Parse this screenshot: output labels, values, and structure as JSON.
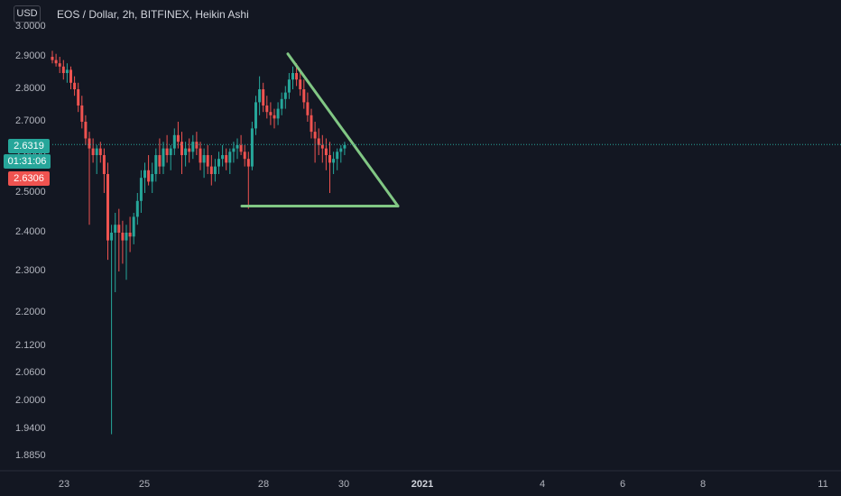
{
  "header": {
    "currency": "USD",
    "title": "EOS / Dollar, 2h, BITFINEX, Heikin Ashi"
  },
  "price_tags": {
    "last_price": "2.6319",
    "countdown": "01:31:06",
    "close_price": "2.6306"
  },
  "colors": {
    "background": "#131722",
    "up": "#26a69a",
    "down": "#ef5350",
    "drawing": "#81c784",
    "axis_text": "#b2b5be"
  },
  "chart_data": {
    "type": "candlestick",
    "symbol": "EOS / Dollar",
    "interval": "2h",
    "exchange": "BITFINEX",
    "chart_style": "Heikin Ashi",
    "y_ticks": [
      "3.0000",
      "2.9000",
      "2.8000",
      "2.7000",
      "2.6000",
      "2.5000",
      "2.4000",
      "2.3000",
      "2.2000",
      "2.1200",
      "2.0600",
      "2.0000",
      "1.9400",
      "1.8850"
    ],
    "x_ticks": [
      "23",
      "25",
      "28",
      "30",
      "2021",
      "4",
      "6",
      "8",
      "11"
    ],
    "x_ticks_bold": [
      "2021"
    ],
    "last_price": 2.6319,
    "candles": [
      [
        2.9,
        2.92,
        2.88,
        2.89
      ],
      [
        2.89,
        2.91,
        2.87,
        2.88
      ],
      [
        2.88,
        2.9,
        2.85,
        2.87
      ],
      [
        2.87,
        2.89,
        2.83,
        2.85
      ],
      [
        2.85,
        2.88,
        2.82,
        2.86
      ],
      [
        2.86,
        2.87,
        2.8,
        2.82
      ],
      [
        2.82,
        2.84,
        2.78,
        2.8
      ],
      [
        2.8,
        2.82,
        2.73,
        2.75
      ],
      [
        2.75,
        2.78,
        2.68,
        2.7
      ],
      [
        2.7,
        2.72,
        2.63,
        2.65
      ],
      [
        2.65,
        2.67,
        2.42,
        2.62
      ],
      [
        2.62,
        2.65,
        2.58,
        2.6
      ],
      [
        2.6,
        2.63,
        2.55,
        2.62
      ],
      [
        2.62,
        2.64,
        2.58,
        2.6
      ],
      [
        2.6,
        2.62,
        2.5,
        2.55
      ],
      [
        2.55,
        2.58,
        2.33,
        2.38
      ],
      [
        2.38,
        2.42,
        1.93,
        2.4
      ],
      [
        2.4,
        2.45,
        2.25,
        2.42
      ],
      [
        2.42,
        2.46,
        2.3,
        2.4
      ],
      [
        2.4,
        2.43,
        2.32,
        2.38
      ],
      [
        2.38,
        2.42,
        2.28,
        2.4
      ],
      [
        2.4,
        2.44,
        2.35,
        2.39
      ],
      [
        2.39,
        2.45,
        2.37,
        2.44
      ],
      [
        2.44,
        2.5,
        2.42,
        2.48
      ],
      [
        2.48,
        2.56,
        2.45,
        2.54
      ],
      [
        2.54,
        2.58,
        2.5,
        2.56
      ],
      [
        2.56,
        2.6,
        2.52,
        2.53
      ],
      [
        2.53,
        2.58,
        2.5,
        2.55
      ],
      [
        2.55,
        2.62,
        2.53,
        2.6
      ],
      [
        2.6,
        2.65,
        2.55,
        2.57
      ],
      [
        2.57,
        2.64,
        2.55,
        2.62
      ],
      [
        2.62,
        2.66,
        2.58,
        2.6
      ],
      [
        2.6,
        2.63,
        2.56,
        2.62
      ],
      [
        2.62,
        2.68,
        2.6,
        2.66
      ],
      [
        2.66,
        2.7,
        2.62,
        2.64
      ],
      [
        2.64,
        2.67,
        2.55,
        2.6
      ],
      [
        2.6,
        2.64,
        2.57,
        2.62
      ],
      [
        2.62,
        2.65,
        2.58,
        2.61
      ],
      [
        2.61,
        2.66,
        2.59,
        2.64
      ],
      [
        2.64,
        2.67,
        2.6,
        2.62
      ],
      [
        2.62,
        2.64,
        2.56,
        2.58
      ],
      [
        2.58,
        2.62,
        2.54,
        2.6
      ],
      [
        2.6,
        2.63,
        2.55,
        2.57
      ],
      [
        2.57,
        2.6,
        2.52,
        2.55
      ],
      [
        2.55,
        2.59,
        2.53,
        2.57
      ],
      [
        2.57,
        2.61,
        2.55,
        2.59
      ],
      [
        2.59,
        2.63,
        2.57,
        2.6
      ],
      [
        2.6,
        2.62,
        2.56,
        2.58
      ],
      [
        2.58,
        2.62,
        2.55,
        2.61
      ],
      [
        2.61,
        2.64,
        2.58,
        2.62
      ],
      [
        2.62,
        2.65,
        2.59,
        2.63
      ],
      [
        2.63,
        2.66,
        2.6,
        2.61
      ],
      [
        2.61,
        2.63,
        2.57,
        2.59
      ],
      [
        2.59,
        2.61,
        2.46,
        2.57
      ],
      [
        2.57,
        2.7,
        2.56,
        2.68
      ],
      [
        2.68,
        2.78,
        2.66,
        2.76
      ],
      [
        2.76,
        2.84,
        2.72,
        2.8
      ],
      [
        2.8,
        2.82,
        2.73,
        2.75
      ],
      [
        2.75,
        2.78,
        2.71,
        2.73
      ],
      [
        2.73,
        2.76,
        2.69,
        2.72
      ],
      [
        2.72,
        2.74,
        2.68,
        2.71
      ],
      [
        2.71,
        2.76,
        2.69,
        2.74
      ],
      [
        2.74,
        2.79,
        2.72,
        2.77
      ],
      [
        2.77,
        2.81,
        2.74,
        2.79
      ],
      [
        2.79,
        2.85,
        2.77,
        2.83
      ],
      [
        2.83,
        2.87,
        2.8,
        2.85
      ],
      [
        2.85,
        2.88,
        2.81,
        2.83
      ],
      [
        2.83,
        2.86,
        2.78,
        2.8
      ],
      [
        2.8,
        2.83,
        2.74,
        2.76
      ],
      [
        2.76,
        2.79,
        2.7,
        2.72
      ],
      [
        2.72,
        2.74,
        2.65,
        2.67
      ],
      [
        2.67,
        2.7,
        2.58,
        2.65
      ],
      [
        2.65,
        2.68,
        2.6,
        2.63
      ],
      [
        2.63,
        2.66,
        2.58,
        2.62
      ],
      [
        2.62,
        2.65,
        2.56,
        2.6
      ],
      [
        2.6,
        2.64,
        2.5,
        2.58
      ],
      [
        2.58,
        2.61,
        2.55,
        2.59
      ],
      [
        2.59,
        2.62,
        2.56,
        2.61
      ],
      [
        2.61,
        2.63,
        2.58,
        2.62
      ],
      [
        2.62,
        2.64,
        2.6,
        2.63
      ]
    ]
  },
  "drawings": {
    "triangle": {
      "apex": {
        "date": "28",
        "price": 2.91
      },
      "right_vertex": {
        "date": "31",
        "price": 2.467
      },
      "base_left": {
        "date": "27",
        "price": 2.467
      }
    }
  }
}
